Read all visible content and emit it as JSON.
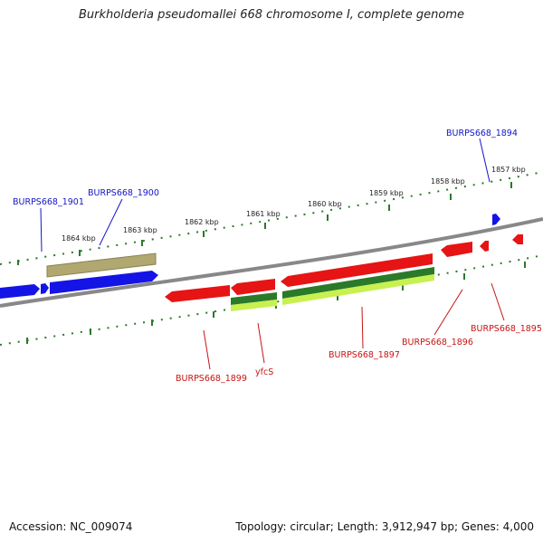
{
  "title": "Burkholderia pseudomallei 668 chromosome I, complete genome",
  "footer": {
    "accession": "Accession: NC_009074",
    "summary": "Topology: circular; Length: 3,912,947 bp; Genes: 4,000"
  },
  "colors": {
    "backbone": "#8a8a8a",
    "forward_gene": "#1414e6",
    "reverse_gene": "#e61414",
    "rrna_or_cds_dark": "#2a7a2a",
    "cds_light": "#c8f050",
    "khaki": "#b0a870",
    "tick": "#2a7a2a",
    "forward_label": "#1414c8",
    "reverse_label": "#c81414"
  },
  "axis_labels": [
    {
      "id": "1864",
      "text": "1864 kbp"
    },
    {
      "id": "1863",
      "text": "1863 kbp"
    },
    {
      "id": "1862",
      "text": "1862 kbp"
    },
    {
      "id": "1861",
      "text": "1861 kbp"
    },
    {
      "id": "1860",
      "text": "1860 kbp"
    },
    {
      "id": "1859",
      "text": "1859 kbp"
    },
    {
      "id": "1858",
      "text": "1858 kbp"
    },
    {
      "id": "1857",
      "text": "1857 kbp"
    }
  ],
  "gene_labels": [
    {
      "id": "1901",
      "text": "BURPS668_1901",
      "strand": "forward"
    },
    {
      "id": "1900",
      "text": "BURPS668_1900",
      "strand": "forward"
    },
    {
      "id": "1894",
      "text": "BURPS668_1894",
      "strand": "forward"
    },
    {
      "id": "1899",
      "text": "BURPS668_1899",
      "strand": "reverse"
    },
    {
      "id": "yfcS",
      "text": "yfcS",
      "strand": "reverse"
    },
    {
      "id": "1897",
      "text": "BURPS668_1897",
      "strand": "reverse"
    },
    {
      "id": "1896",
      "text": "BURPS668_1896",
      "strand": "reverse"
    },
    {
      "id": "1895",
      "text": "BURPS668_1895",
      "strand": "reverse"
    }
  ]
}
